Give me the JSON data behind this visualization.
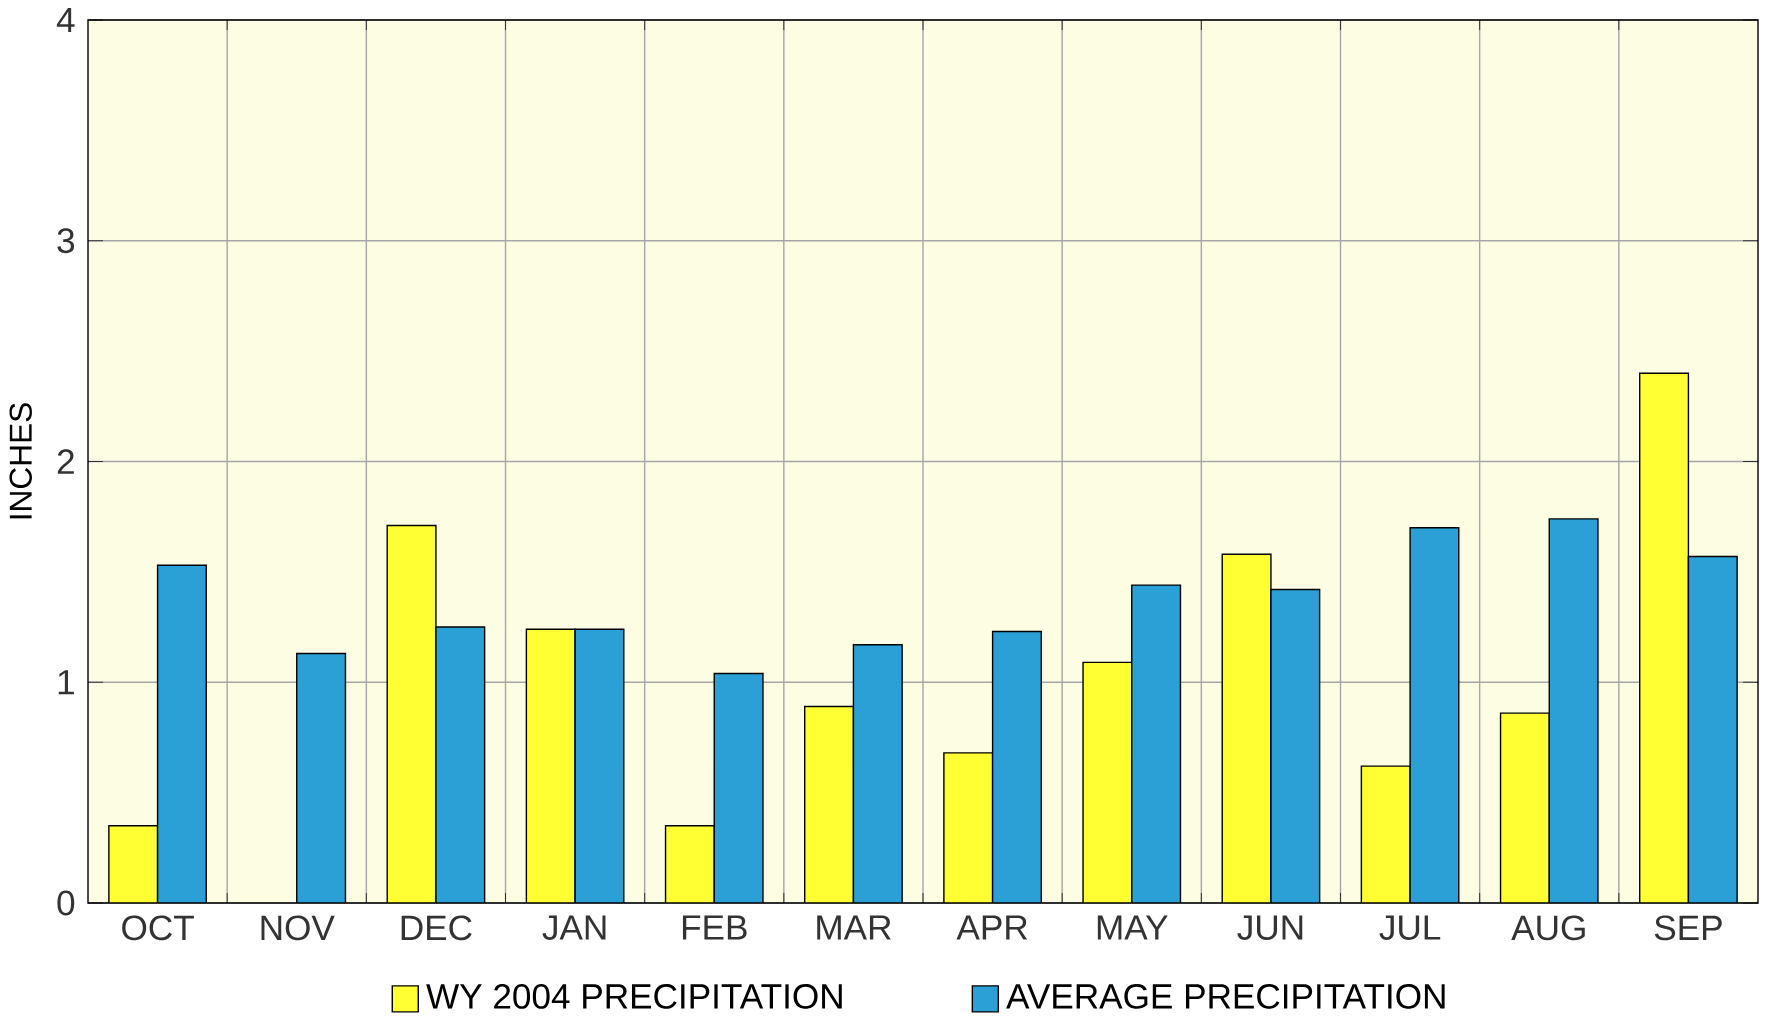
{
  "chart_data": {
    "type": "bar",
    "ylabel": "INCHES",
    "categories": [
      "OCT",
      "NOV",
      "DEC",
      "JAN",
      "FEB",
      "MAR",
      "APR",
      "MAY",
      "JUN",
      "JUL",
      "AUG",
      "SEP"
    ],
    "series": [
      {
        "name": "WY 2004 PRECIPITATION",
        "color": "#ffff33",
        "values": [
          0.35,
          null,
          1.71,
          1.24,
          0.35,
          0.89,
          0.68,
          1.09,
          1.58,
          0.62,
          0.86,
          2.4
        ]
      },
      {
        "name": "AVERAGE PRECIPITATION",
        "color": "#2ba0d6",
        "values": [
          1.53,
          1.13,
          1.25,
          1.24,
          1.04,
          1.17,
          1.23,
          1.44,
          1.42,
          1.7,
          1.74,
          1.57
        ]
      }
    ],
    "ylim": [
      0,
      4
    ],
    "yticks": [
      0,
      1,
      2,
      3,
      4
    ],
    "grid": true,
    "legend": "bottom"
  }
}
